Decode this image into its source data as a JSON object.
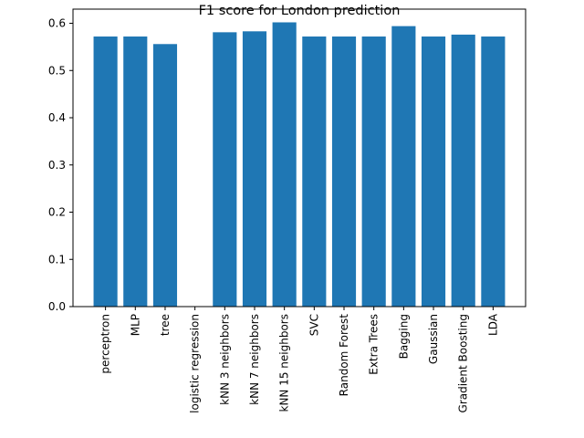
{
  "chart_data": {
    "type": "bar",
    "title": "F1 score for London prediction",
    "xlabel": "",
    "ylabel": "",
    "categories": [
      "perceptron",
      "MLP",
      "tree",
      "logistic regression",
      "kNN 3 neighbors",
      "kNN 7 neighbors",
      "kNN 15 neighbors",
      "SVC",
      "Random Forest",
      "Extra Trees",
      "Bagging",
      "Gaussian",
      "Gradient Boosting",
      "LDA"
    ],
    "values": [
      0.572,
      0.572,
      0.556,
      0.0,
      0.581,
      0.583,
      0.602,
      0.572,
      0.572,
      0.572,
      0.594,
      0.572,
      0.576,
      0.572
    ],
    "ylim": [
      0,
      0.63
    ],
    "yticks": [
      "0.0",
      "0.1",
      "0.2",
      "0.3",
      "0.4",
      "0.5",
      "0.6"
    ],
    "bar_color": "#1f77b4",
    "grid": false
  }
}
